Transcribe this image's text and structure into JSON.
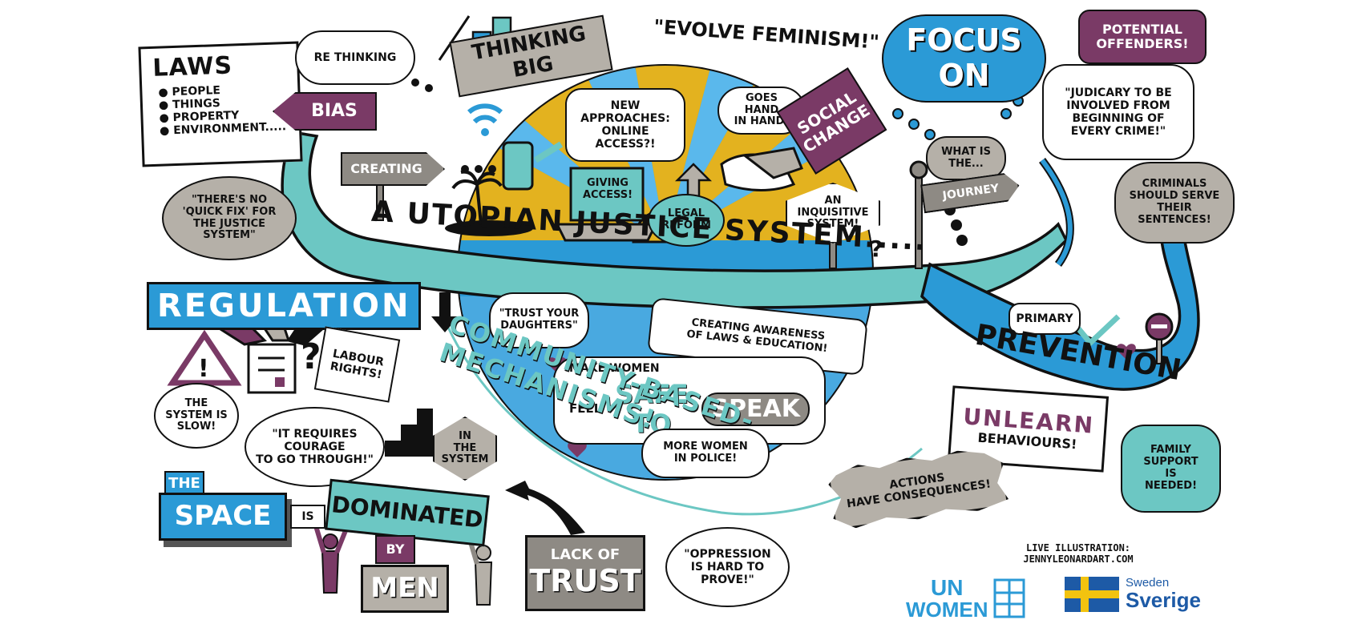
{
  "title_banner": "A UTOPIAN JUSTICE SYSTEM.....",
  "community_mechanisms": "COMMUNITY-BASED-MECHANISMS!",
  "laws": {
    "heading": "LAWS",
    "items": [
      "PEOPLE",
      "THINGS",
      "PROPERTY",
      "ENVIRONMENT....."
    ]
  },
  "rethinking": "RE THINKING",
  "thinking_big": "THINKING BIG",
  "evolve_feminism": "\"EVOLVE FEMINISM!\"",
  "focus_on": "FOCUS\nON",
  "potential_offenders": "POTENTIAL\nOFFENDERS!",
  "judiciary_quote": "\"JUDICARY TO BE\nINVOLVED FROM\nBEGINNING OF\nEVERY CRIME!\"",
  "bias": "BIAS",
  "creating": "CREATING",
  "new_approaches": "NEW APPROACHES:\nONLINE\nACCESS?!",
  "goes_hand_in_hand": "GOES HAND\nIN HAND!",
  "social_change": "SOCIAL\nCHANGE",
  "what_is_the": "WHAT IS\nTHE...",
  "journey": "JOURNEY",
  "criminals_serve": "CRIMINALS\nSHOULD SERVE\nTHEIR\nSENTENCES!",
  "no_quick_fix": "\"THERE'S NO\n'QUICK FIX' FOR\nTHE JUSTICE\nSYSTEM\"",
  "giving_access": "GIVING\nACCESS!",
  "legal_reform": "LEGAL\nREFORM",
  "inquisitive_system": "AN\nINQUISITIVE\nSYSTEM!",
  "regulation": "REGULATION",
  "labour_rights": "LABOUR\nRIGHTS!",
  "system_slow": "THE\nSYSTEM IS\nSLOW!",
  "requires_courage": "\"IT REQUIRES\nCOURAGE\nTO GO THROUGH!\"",
  "trust_daughters": "\"TRUST YOUR\nDAUGHTERS\"",
  "creating_awareness": "CREATING AWARENESS\nOF LAWS & EDUCATION!",
  "make_women": "MAKE WOMEN",
  "feel": "FEEL",
  "safe_to": "SAFE TO",
  "speak": "SPEAK",
  "more_women_police": "MORE WOMEN\nIN POLICE!",
  "primary": "PRIMARY",
  "prevention": "PREVENTION",
  "unlearn": "UNLEARN",
  "behaviours": "BEHAVIOURS!",
  "family_support": "FAMILY\nSUPPORT\nIS\nNEEDED!",
  "actions_consequences": "ACTIONS\nHAVE CONSEQUENCES!",
  "in_the_system": "IN\nTHE\nSYSTEM",
  "the_space": "THE",
  "space": "SPACE",
  "is": "IS",
  "dominated": "DOMINATED",
  "by": "BY",
  "men": "MEN",
  "lack_of": "LACK OF",
  "trust": "TRUST",
  "oppression": "\"OPPRESSION\nIS HARD TO\nPROVE!\"",
  "credit": "LIVE ILLUSTRATION:\nJENNYLEONARDART.COM",
  "un_women": {
    "un": "UN",
    "women": "WOMEN"
  },
  "sweden": {
    "small": "Sweden",
    "big": "Sverige"
  },
  "colors": {
    "teal": "#6cc7c3",
    "blue": "#2b9ad6",
    "sky": "#4db0e6",
    "gold": "#e3b21f",
    "purple": "#7a3a66",
    "grey": "#8e8a84",
    "lightgrey": "#b5b0a8",
    "ink": "#111111"
  }
}
